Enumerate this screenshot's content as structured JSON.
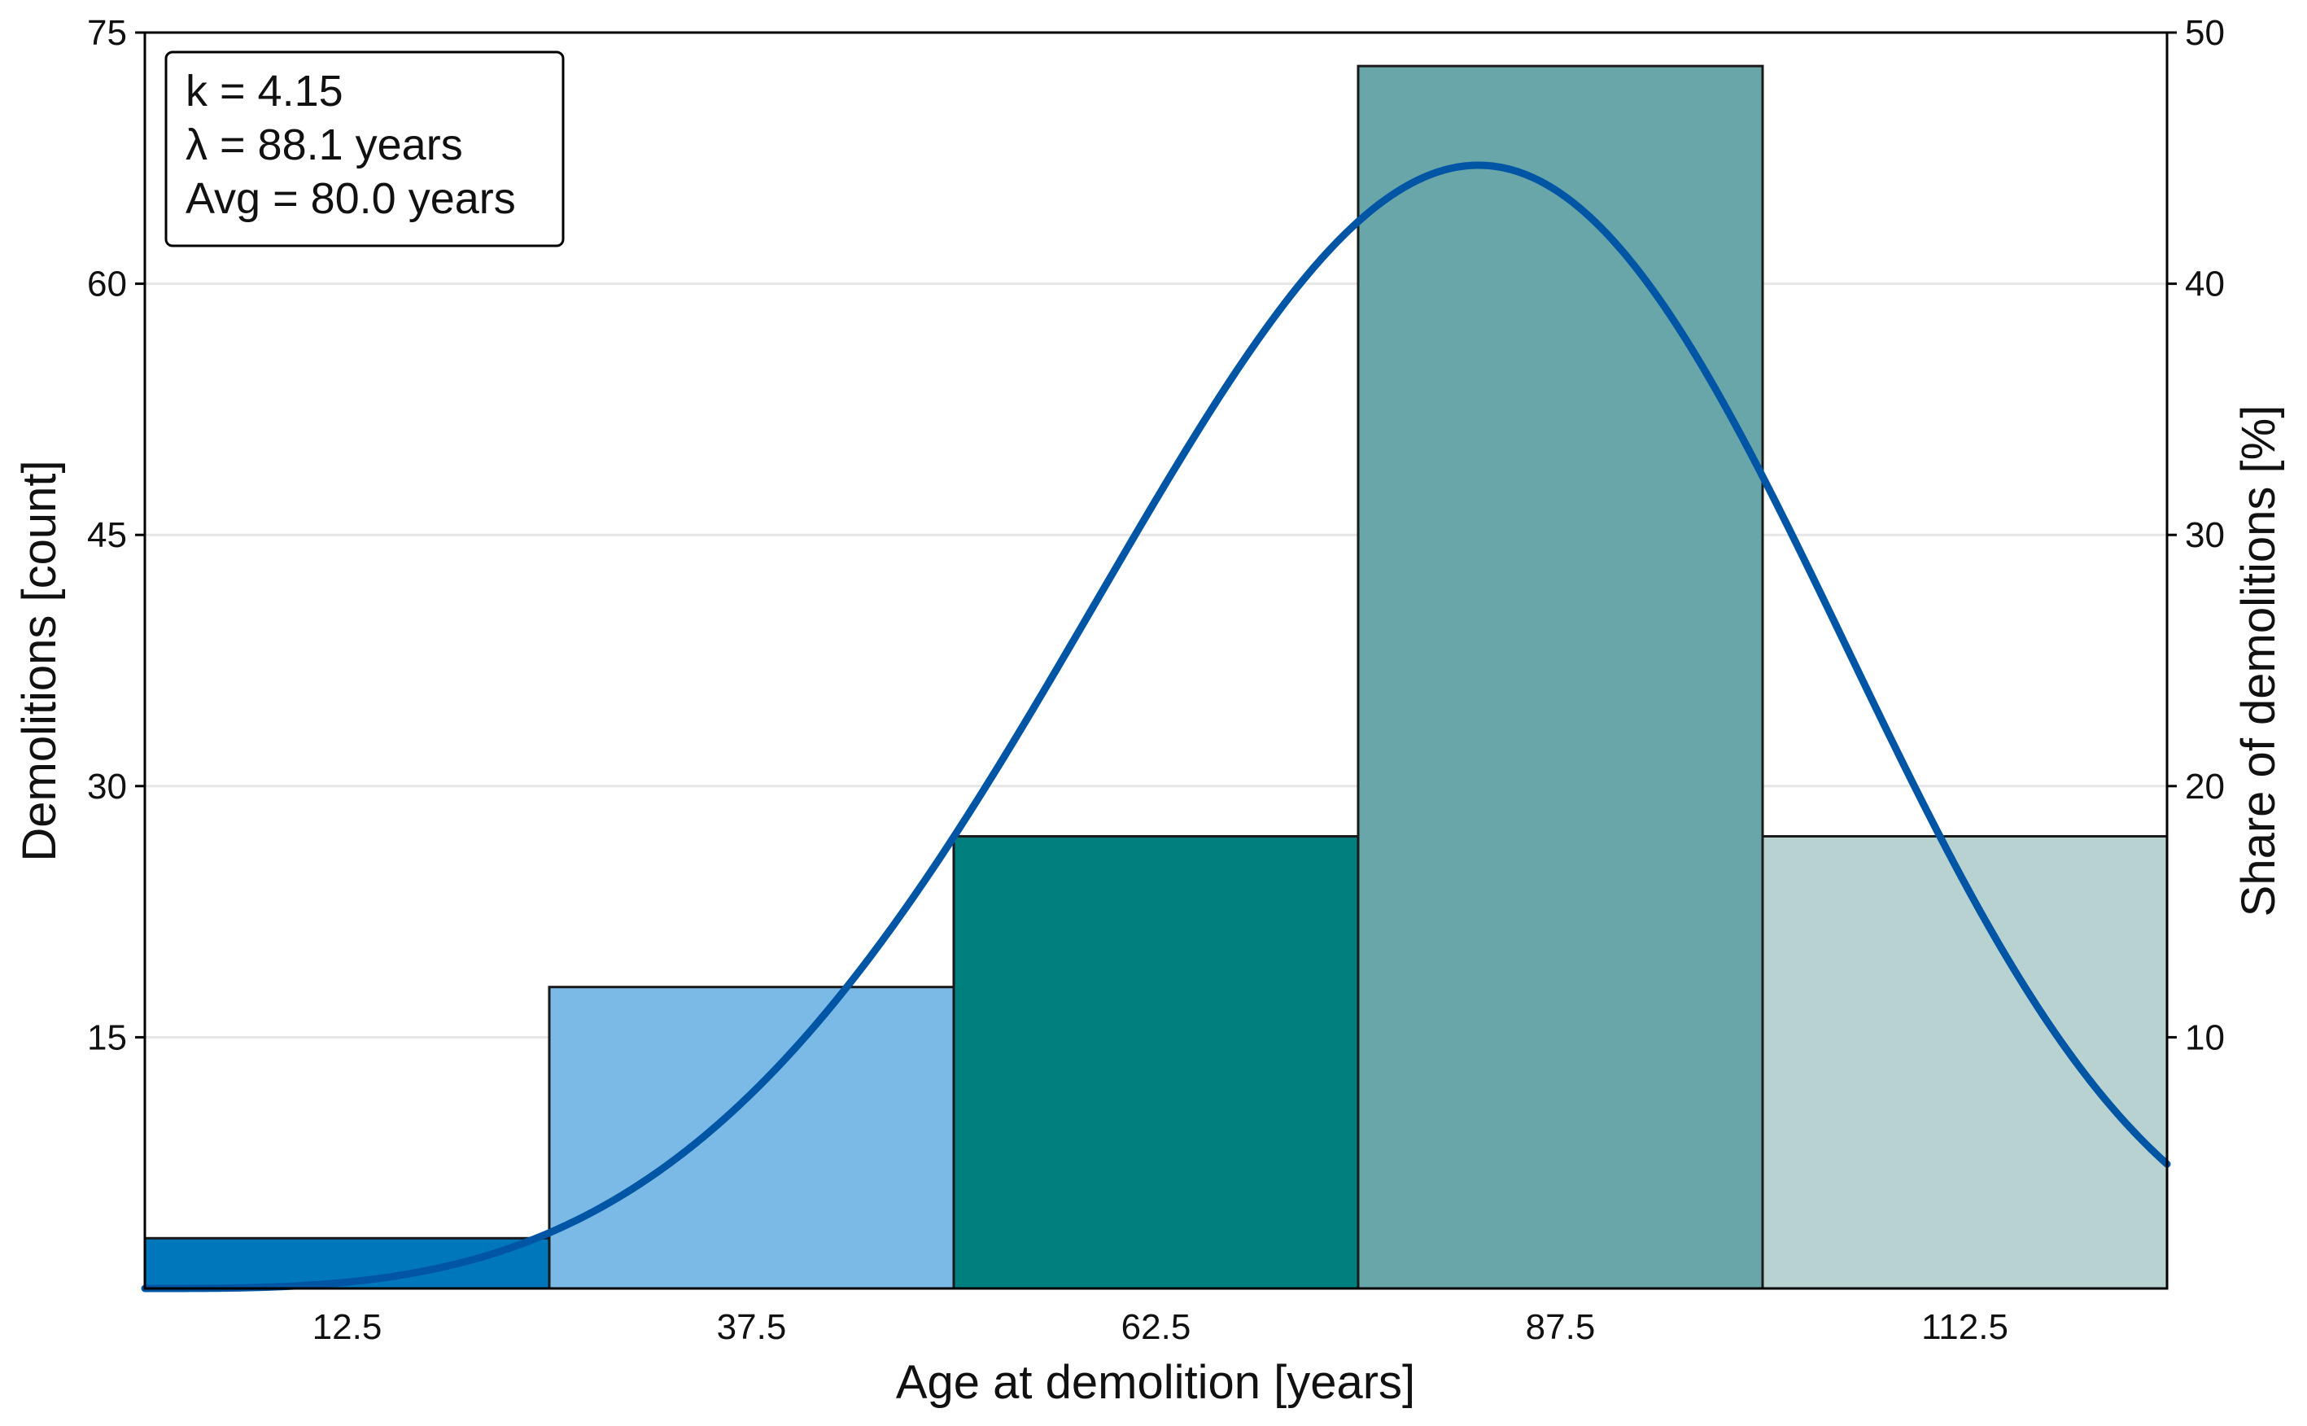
{
  "chart_data": {
    "type": "bar",
    "title": "",
    "categories": [
      "12.5",
      "37.5",
      "62.5",
      "87.5",
      "112.5"
    ],
    "bin_edges": [
      0,
      25,
      50,
      75,
      100,
      125
    ],
    "values": [
      3,
      18,
      27,
      73,
      27
    ],
    "bar_colors": [
      "#0077BB",
      "#7BBAE6",
      "#007F7F",
      "#68A6AA",
      "#B8D2D2"
    ],
    "xlabel": "Age at demolition [years]",
    "ylabel": "Demolitions [count]",
    "y2label": "Share of demolitions [%]",
    "xlim": [
      0,
      125
    ],
    "ylim": [
      0,
      75
    ],
    "y2lim": [
      0,
      50
    ],
    "yticks": [
      15,
      30,
      45,
      60,
      75
    ],
    "y2ticks": [
      10,
      20,
      30,
      40,
      50
    ],
    "grid": "horizontal",
    "curve": {
      "type": "weibull-pdf",
      "k": 4.15,
      "lambda": 88.1,
      "axis": "right",
      "color": "#0055A5"
    },
    "annotation": {
      "position": "top-left",
      "lines": [
        "k = 4.15",
        "λ = 88.1 years",
        "Avg = 80.0 years"
      ]
    }
  }
}
